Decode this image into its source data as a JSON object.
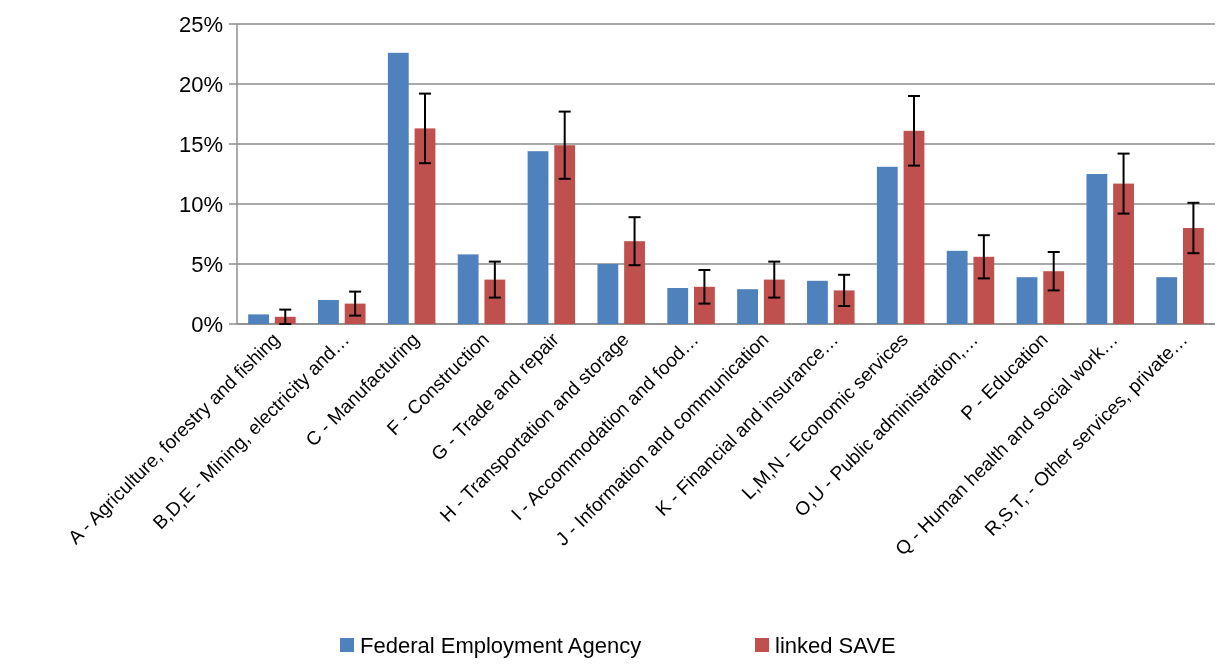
{
  "chart_data": {
    "type": "bar",
    "categories": [
      "A - Agriculture, forestry and fishing",
      "B,D,E - Mining, electricity and…",
      "C - Manufacturing",
      "F - Construction",
      "G - Trade and repair",
      "H - Transportation and storage",
      "I - Accommodation and food…",
      "J - Information and communication",
      "K - Financial and insurance…",
      "L,M,N - Economic services",
      "O,U - Public administration,…",
      "P - Education",
      "Q - Human health and social work…",
      "R,S,T, - Other services, private…"
    ],
    "series": [
      {
        "name": "Federal Employment Agency",
        "color": "#4f81bd",
        "values": [
          0.8,
          2.0,
          22.6,
          5.8,
          14.4,
          5.0,
          3.0,
          2.9,
          3.6,
          13.1,
          6.1,
          3.9,
          12.5,
          3.9
        ]
      },
      {
        "name": "linked SAVE",
        "color": "#c0504d",
        "values": [
          0.6,
          1.7,
          16.3,
          3.7,
          14.9,
          6.9,
          3.1,
          3.7,
          2.8,
          16.1,
          5.6,
          4.4,
          11.7,
          8.0
        ],
        "errors": [
          0.6,
          1.0,
          2.9,
          1.5,
          2.8,
          2.0,
          1.4,
          1.5,
          1.3,
          2.9,
          1.8,
          1.6,
          2.5,
          2.1
        ]
      }
    ],
    "ylim": [
      0,
      25
    ],
    "yticks": [
      {
        "value": 0,
        "label": "0%"
      },
      {
        "value": 5,
        "label": "5%"
      },
      {
        "value": 10,
        "label": "10%"
      },
      {
        "value": 15,
        "label": "15%"
      },
      {
        "value": 20,
        "label": "20%"
      },
      {
        "value": 25,
        "label": "25%"
      }
    ],
    "grid": "y",
    "legend": "bottom"
  }
}
